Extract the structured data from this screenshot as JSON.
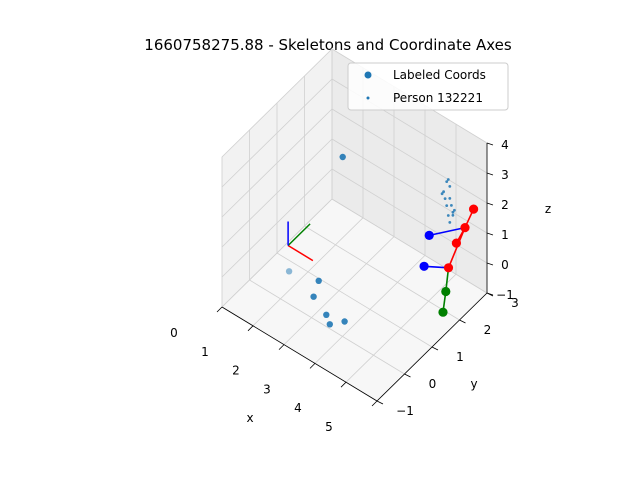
{
  "chart_data": {
    "type": "scatter",
    "projection": "3d",
    "title": "1660758275.88 - Skeletons and Coordinate Axes",
    "xlabel": "x",
    "ylabel": "y",
    "zlabel": "z",
    "xlim": [
      0,
      5
    ],
    "ylim": [
      -1,
      3
    ],
    "zlim": [
      -1,
      4
    ],
    "xticks": [
      "0",
      "1",
      "2",
      "3",
      "4",
      "5"
    ],
    "yticks": [
      "−1",
      "0",
      "1",
      "2",
      "3"
    ],
    "zticks": [
      "−1",
      "0",
      "1",
      "2",
      "3",
      "4"
    ],
    "grid": true,
    "legend_position": "upper right",
    "legend": [
      {
        "label": "Labeled Coords",
        "color": "#1f77b4"
      },
      {
        "label": "Person 132221",
        "color": "#1f77b4"
      }
    ],
    "series": [
      {
        "name": "Labeled Coords",
        "color": "#1f77b4",
        "points": [
          [
            0.7,
            2.6,
            1.2
          ],
          [
            1.1,
            0.2,
            -0.2
          ],
          [
            1.7,
            0.6,
            -0.5
          ],
          [
            1.8,
            0.3,
            -0.7
          ],
          [
            2.3,
            0.2,
            -0.9
          ],
          [
            2.5,
            0.1,
            -1.0
          ],
          [
            2.8,
            0.3,
            -0.9
          ]
        ]
      },
      {
        "name": "Person 132221",
        "color": "#1f77b4",
        "points": [
          [
            3.7,
            3.0,
            1.9
          ],
          [
            3.75,
            3.0,
            2.0
          ],
          [
            3.8,
            3.0,
            1.8
          ],
          [
            3.6,
            3.0,
            1.5
          ],
          [
            3.65,
            3.0,
            1.3
          ],
          [
            3.7,
            3.0,
            1.1
          ],
          [
            3.8,
            3.0,
            1.4
          ],
          [
            3.85,
            3.0,
            1.2
          ],
          [
            3.9,
            3.0,
            1.0
          ],
          [
            3.75,
            3.0,
            0.8
          ],
          [
            3.8,
            3.0,
            0.6
          ],
          [
            3.9,
            3.0,
            0.9
          ],
          [
            3.55,
            3.0,
            1.4
          ],
          [
            3.95,
            3.0,
            1.1
          ]
        ]
      }
    ],
    "axes_markers": {
      "origin": [
        0.8,
        0.5,
        0.2
      ],
      "x_color": "#ff0000",
      "y_color": "#008000",
      "z_color": "#0000ff"
    },
    "skeleton": {
      "joint_colors": [
        "#0000ff",
        "#ff0000",
        "#008000"
      ],
      "joints": [
        {
          "p": [
            4.2,
            1.8,
            1.5
          ],
          "c": 0
        },
        {
          "p": [
            4.3,
            1.5,
            0.8
          ],
          "c": 0
        },
        {
          "p": [
            4.9,
            2.0,
            1.5
          ],
          "c": 1
        },
        {
          "p": [
            5.0,
            2.2,
            1.9
          ],
          "c": 1
        },
        {
          "p": [
            5.0,
            1.6,
            1.1
          ],
          "c": 1
        },
        {
          "p": [
            5.1,
            2.4,
            2.4
          ],
          "c": 1
        },
        {
          "p": [
            5.0,
            1.5,
            0.4
          ],
          "c": 2
        },
        {
          "p": [
            5.0,
            1.4,
            -0.2
          ],
          "c": 2
        }
      ],
      "bones": [
        {
          "a": 0,
          "b": 3,
          "c": 0
        },
        {
          "a": 1,
          "b": 4,
          "c": 0
        },
        {
          "a": 2,
          "b": 3,
          "c": 1
        },
        {
          "a": 3,
          "b": 4,
          "c": 1
        },
        {
          "a": 3,
          "b": 5,
          "c": 1
        },
        {
          "a": 4,
          "b": 6,
          "c": 2
        },
        {
          "a": 6,
          "b": 7,
          "c": 2
        }
      ]
    }
  }
}
